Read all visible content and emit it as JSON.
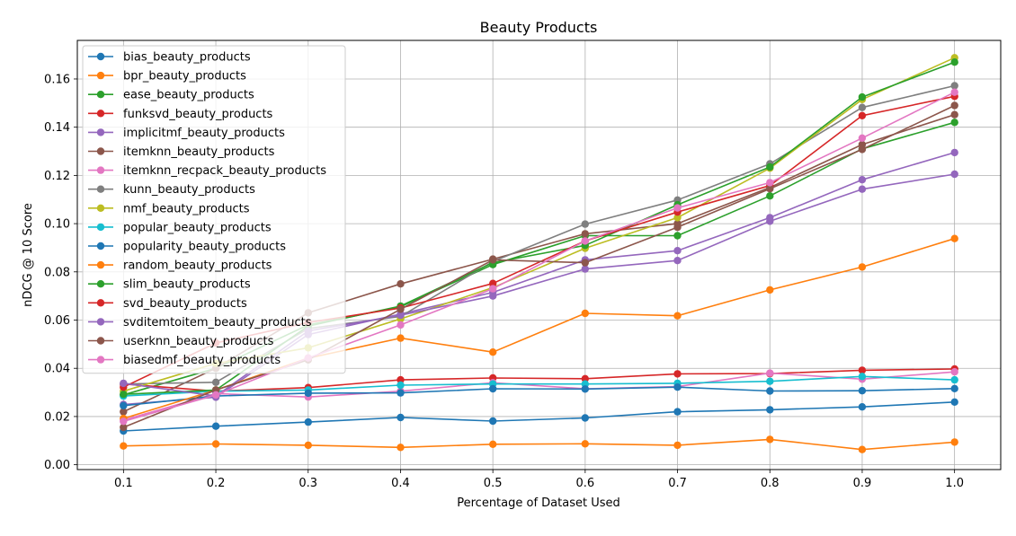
{
  "chart_data": {
    "type": "line",
    "title": "Beauty Products",
    "xlabel": "Percentage of Dataset Used",
    "ylabel": "nDCG @ 10 Score",
    "x": [
      0.1,
      0.2,
      0.3,
      0.4,
      0.5,
      0.6,
      0.7,
      0.8,
      0.9,
      1.0
    ],
    "x_tick_labels": [
      "0.1",
      "0.2",
      "0.3",
      "0.4",
      "0.5",
      "0.6",
      "0.7",
      "0.8",
      "0.9",
      "1.0"
    ],
    "y_ticks": [
      0.0,
      0.02,
      0.04,
      0.06,
      0.08,
      0.1,
      0.12,
      0.14,
      0.16
    ],
    "y_tick_labels": [
      "0.00",
      "0.02",
      "0.04",
      "0.06",
      "0.08",
      "0.10",
      "0.12",
      "0.14",
      "0.16"
    ],
    "xlim": [
      0.05,
      1.05
    ],
    "ylim": [
      -0.002,
      0.176
    ],
    "grid": true,
    "legend_position": "upper-left",
    "series": [
      {
        "name": "bias_beauty_products",
        "color": "#1f77b4",
        "values": [
          0.014,
          0.016,
          0.0177,
          0.0196,
          0.0181,
          0.0194,
          0.022,
          0.0228,
          0.024,
          0.026
        ]
      },
      {
        "name": "bpr_beauty_products",
        "color": "#ff7f0e",
        "values": [
          0.0078,
          0.0086,
          0.0081,
          0.0072,
          0.0085,
          0.0087,
          0.0081,
          0.0105,
          0.0063,
          0.0094
        ]
      },
      {
        "name": "ease_beauty_products",
        "color": "#2ca02c",
        "values": [
          0.029,
          0.04,
          0.058,
          0.0655,
          0.083,
          0.095,
          0.095,
          0.1115,
          0.131,
          0.142
        ]
      },
      {
        "name": "funksvd_beauty_products",
        "color": "#d62728",
        "values": [
          0.0335,
          0.0305,
          0.032,
          0.0352,
          0.036,
          0.0357,
          0.0377,
          0.0378,
          0.0392,
          0.0397
        ]
      },
      {
        "name": "implicitmf_beauty_products",
        "color": "#9467bd",
        "values": [
          0.025,
          0.028,
          0.054,
          0.0625,
          0.0715,
          0.085,
          0.0888,
          0.1025,
          0.1182,
          0.1295
        ]
      },
      {
        "name": "itemknn_beauty_products",
        "color": "#8c564b",
        "values": [
          0.022,
          0.04,
          0.063,
          0.075,
          0.0853,
          0.0958,
          0.1,
          0.115,
          0.1328,
          0.1452
        ]
      },
      {
        "name": "itemknn_recpack_beauty_products",
        "color": "#e377c2",
        "values": [
          0.0185,
          0.0295,
          0.0281,
          0.0305,
          0.034,
          0.0315,
          0.0324,
          0.038,
          0.0355,
          0.0385
        ]
      },
      {
        "name": "kunn_beauty_products",
        "color": "#7f7f7f",
        "values": [
          0.0335,
          0.0342,
          0.0565,
          0.0615,
          0.0843,
          0.0998,
          0.1098,
          0.1248,
          0.1482,
          0.1572
        ]
      },
      {
        "name": "nmf_beauty_products",
        "color": "#bcbd22",
        "values": [
          0.0305,
          0.042,
          0.0485,
          0.0605,
          0.0735,
          0.0898,
          0.1025,
          0.123,
          0.1515,
          0.1688
        ]
      },
      {
        "name": "popular_beauty_products",
        "color": "#17becf",
        "values": [
          0.0285,
          0.0305,
          0.031,
          0.033,
          0.0335,
          0.0335,
          0.0338,
          0.0346,
          0.0366,
          0.0352
        ]
      },
      {
        "name": "popularity_beauty_products",
        "color": "#1f77b4",
        "values": [
          0.0245,
          0.0285,
          0.0297,
          0.0298,
          0.0315,
          0.0314,
          0.0322,
          0.0306,
          0.0307,
          0.0316
        ]
      },
      {
        "name": "random_beauty_products",
        "color": "#ff7f0e",
        "values": [
          0.0192,
          0.031,
          0.0442,
          0.0525,
          0.0467,
          0.0628,
          0.0618,
          0.0725,
          0.082,
          0.0938
        ]
      },
      {
        "name": "slim_beauty_products",
        "color": "#2ca02c",
        "values": [
          0.0292,
          0.031,
          0.0575,
          0.0658,
          0.0838,
          0.091,
          0.1078,
          0.1235,
          0.1525,
          0.167
        ]
      },
      {
        "name": "svd_beauty_products",
        "color": "#d62728",
        "values": [
          0.0322,
          0.0505,
          0.059,
          0.065,
          0.0752,
          0.0928,
          0.1048,
          0.1158,
          0.1448,
          0.1528
        ]
      },
      {
        "name": "svditemtoitem_beauty_products",
        "color": "#9467bd",
        "values": [
          0.0338,
          0.0285,
          0.0555,
          0.062,
          0.07,
          0.0812,
          0.0847,
          0.101,
          0.1143,
          0.1205
        ]
      },
      {
        "name": "userknn_beauty_products",
        "color": "#8c564b",
        "values": [
          0.0155,
          0.031,
          0.0435,
          0.0645,
          0.085,
          0.0838,
          0.0985,
          0.1145,
          0.1308,
          0.149
        ]
      },
      {
        "name": "biasedmf_beauty_products",
        "color": "#e377c2",
        "values": [
          0.018,
          0.029,
          0.0443,
          0.058,
          0.073,
          0.0928,
          0.1065,
          0.117,
          0.1355,
          0.1545
        ]
      }
    ]
  }
}
